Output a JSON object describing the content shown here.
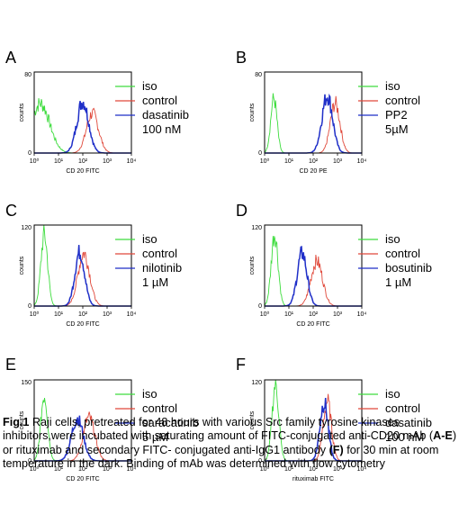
{
  "caption": {
    "label": "Fig.1",
    "p1": " Raji cells, pretreated for 48 hours with  various Src family tyrosine kinases inhibitors,were incubated with saturating amount of FITC-conjugated anti-CD20 mAb (",
    "b1": "A-E",
    "p2": ") or rituximab and secondary FITC- conjugated anti-IgG1 antibody ",
    "b2": "(F)",
    "p3": " for 30 min at room temperature in the dark. Binding of mAb was determined with flow cytometry"
  },
  "colors": {
    "iso": "#3ddc3d",
    "control": "#e0483a",
    "treated": "#1f2fc8"
  },
  "chart_data": [
    {
      "panel": "A",
      "type": "line",
      "ylabel": "counts",
      "xlabel": "CD 20 FITC",
      "ylim": [
        0,
        80
      ],
      "xlim": [
        0,
        10000
      ],
      "scale": "log",
      "y_ticks": [
        "0",
        "80"
      ],
      "x_ticks": [
        "10⁰",
        "10¹",
        "10²",
        "10³",
        "10⁴"
      ],
      "legend": [
        {
          "series": "iso",
          "text": "iso"
        },
        {
          "series": "control",
          "text": "control"
        },
        {
          "series": "treated",
          "text": "dasatinib"
        },
        {
          "series": "treated",
          "text": "100 nM"
        }
      ],
      "series": [
        {
          "name": "iso",
          "peak_x": 1.8,
          "peak_y": 50,
          "width": 0.38
        },
        {
          "name": "control",
          "peak_x": 250,
          "peak_y": 40,
          "width": 0.25
        },
        {
          "name": "treated",
          "peak_x": 100,
          "peak_y": 52,
          "width": 0.24
        }
      ]
    },
    {
      "panel": "B",
      "type": "line",
      "ylabel": "counts",
      "xlabel": "CD 20 PE",
      "ylim": [
        0,
        80
      ],
      "xlim": [
        0,
        10000
      ],
      "scale": "log",
      "y_ticks": [
        "0",
        "80"
      ],
      "x_ticks": [
        "10⁰",
        "10¹",
        "10²",
        "10³",
        "10⁴"
      ],
      "legend": [
        {
          "series": "iso",
          "text": "iso"
        },
        {
          "series": "control",
          "text": "control"
        },
        {
          "series": "treated",
          "text": "PP2"
        },
        {
          "series": "treated",
          "text": "5µM"
        }
      ],
      "series": [
        {
          "name": "iso",
          "peak_x": 2.4,
          "peak_y": 55,
          "width": 0.13
        },
        {
          "name": "control",
          "peak_x": 800,
          "peak_y": 50,
          "width": 0.2
        },
        {
          "name": "treated",
          "peak_x": 380,
          "peak_y": 58,
          "width": 0.22
        }
      ]
    },
    {
      "panel": "C",
      "type": "line",
      "ylabel": "counts",
      "xlabel": "CD 20 FITC",
      "ylim": [
        0,
        120
      ],
      "xlim": [
        0,
        10000
      ],
      "scale": "log",
      "y_ticks": [
        "0",
        "120"
      ],
      "x_ticks": [
        "10⁰",
        "10¹",
        "10²",
        "10³",
        "10⁴"
      ],
      "legend": [
        {
          "series": "iso",
          "text": "iso"
        },
        {
          "series": "control",
          "text": "control"
        },
        {
          "series": "treated",
          "text": "nilotinib"
        },
        {
          "series": "treated",
          "text": "1 µM"
        }
      ],
      "series": [
        {
          "name": "iso",
          "peak_x": 2.6,
          "peak_y": 108,
          "width": 0.14
        },
        {
          "name": "control",
          "peak_x": 110,
          "peak_y": 80,
          "width": 0.24
        },
        {
          "name": "treated",
          "peak_x": 75,
          "peak_y": 82,
          "width": 0.2
        }
      ]
    },
    {
      "panel": "D",
      "type": "line",
      "ylabel": "counts",
      "xlabel": "CD 20 FITC",
      "ylim": [
        0,
        120
      ],
      "xlim": [
        0,
        10000
      ],
      "scale": "log",
      "y_ticks": [
        "0",
        "120"
      ],
      "x_ticks": [
        "10⁰",
        "10¹",
        "10²",
        "10³",
        "10⁴"
      ],
      "legend": [
        {
          "series": "iso",
          "text": "iso"
        },
        {
          "series": "control",
          "text": "control"
        },
        {
          "series": "treated",
          "text": "bosutinib"
        },
        {
          "series": "treated",
          "text": "1 µM"
        }
      ],
      "series": [
        {
          "name": "iso",
          "peak_x": 2.6,
          "peak_y": 110,
          "width": 0.14
        },
        {
          "name": "control",
          "peak_x": 140,
          "peak_y": 68,
          "width": 0.24
        },
        {
          "name": "treated",
          "peak_x": 35,
          "peak_y": 80,
          "width": 0.2
        }
      ]
    },
    {
      "panel": "E",
      "type": "line",
      "ylabel": "counts",
      "xlabel": "CD 20 FITC",
      "ylim": [
        0,
        150
      ],
      "xlim": [
        0,
        10000
      ],
      "scale": "log",
      "y_ticks": [
        "0",
        "150"
      ],
      "x_ticks": [
        "10⁰",
        "10¹",
        "10²",
        "10³",
        "10⁴"
      ],
      "legend": [
        {
          "series": "iso",
          "text": "iso"
        },
        {
          "series": "control",
          "text": "control"
        },
        {
          "series": "treated",
          "text": "saracatinib"
        },
        {
          "series": "treated",
          "text": "5 µM"
        }
      ],
      "series": [
        {
          "name": "iso",
          "peak_x": 2.6,
          "peak_y": 125,
          "width": 0.14
        },
        {
          "name": "control",
          "peak_x": 180,
          "peak_y": 82,
          "width": 0.24
        },
        {
          "name": "treated",
          "peak_x": 60,
          "peak_y": 80,
          "width": 0.24
        }
      ]
    },
    {
      "panel": "F",
      "type": "line",
      "ylabel": "counts",
      "xlabel": "rituximab FITC",
      "ylim": [
        0,
        120
      ],
      "xlim": [
        0,
        10000
      ],
      "scale": "log",
      "y_ticks": [
        "0",
        "120"
      ],
      "x_ticks": [
        "10⁰",
        "10¹",
        "10²",
        "10³",
        "10⁴"
      ],
      "legend": [
        {
          "series": "iso",
          "text": "iso"
        },
        {
          "series": "control",
          "text": "control"
        },
        {
          "series": "treated",
          "text": "dasatinib"
        },
        {
          "series": "treated",
          "text": "100 nM"
        }
      ],
      "series": [
        {
          "name": "iso",
          "peak_x": 2.8,
          "peak_y": 115,
          "width": 0.14
        },
        {
          "name": "control",
          "peak_x": 380,
          "peak_y": 90,
          "width": 0.17
        },
        {
          "name": "treated",
          "peak_x": 280,
          "peak_y": 88,
          "width": 0.17
        }
      ]
    }
  ]
}
